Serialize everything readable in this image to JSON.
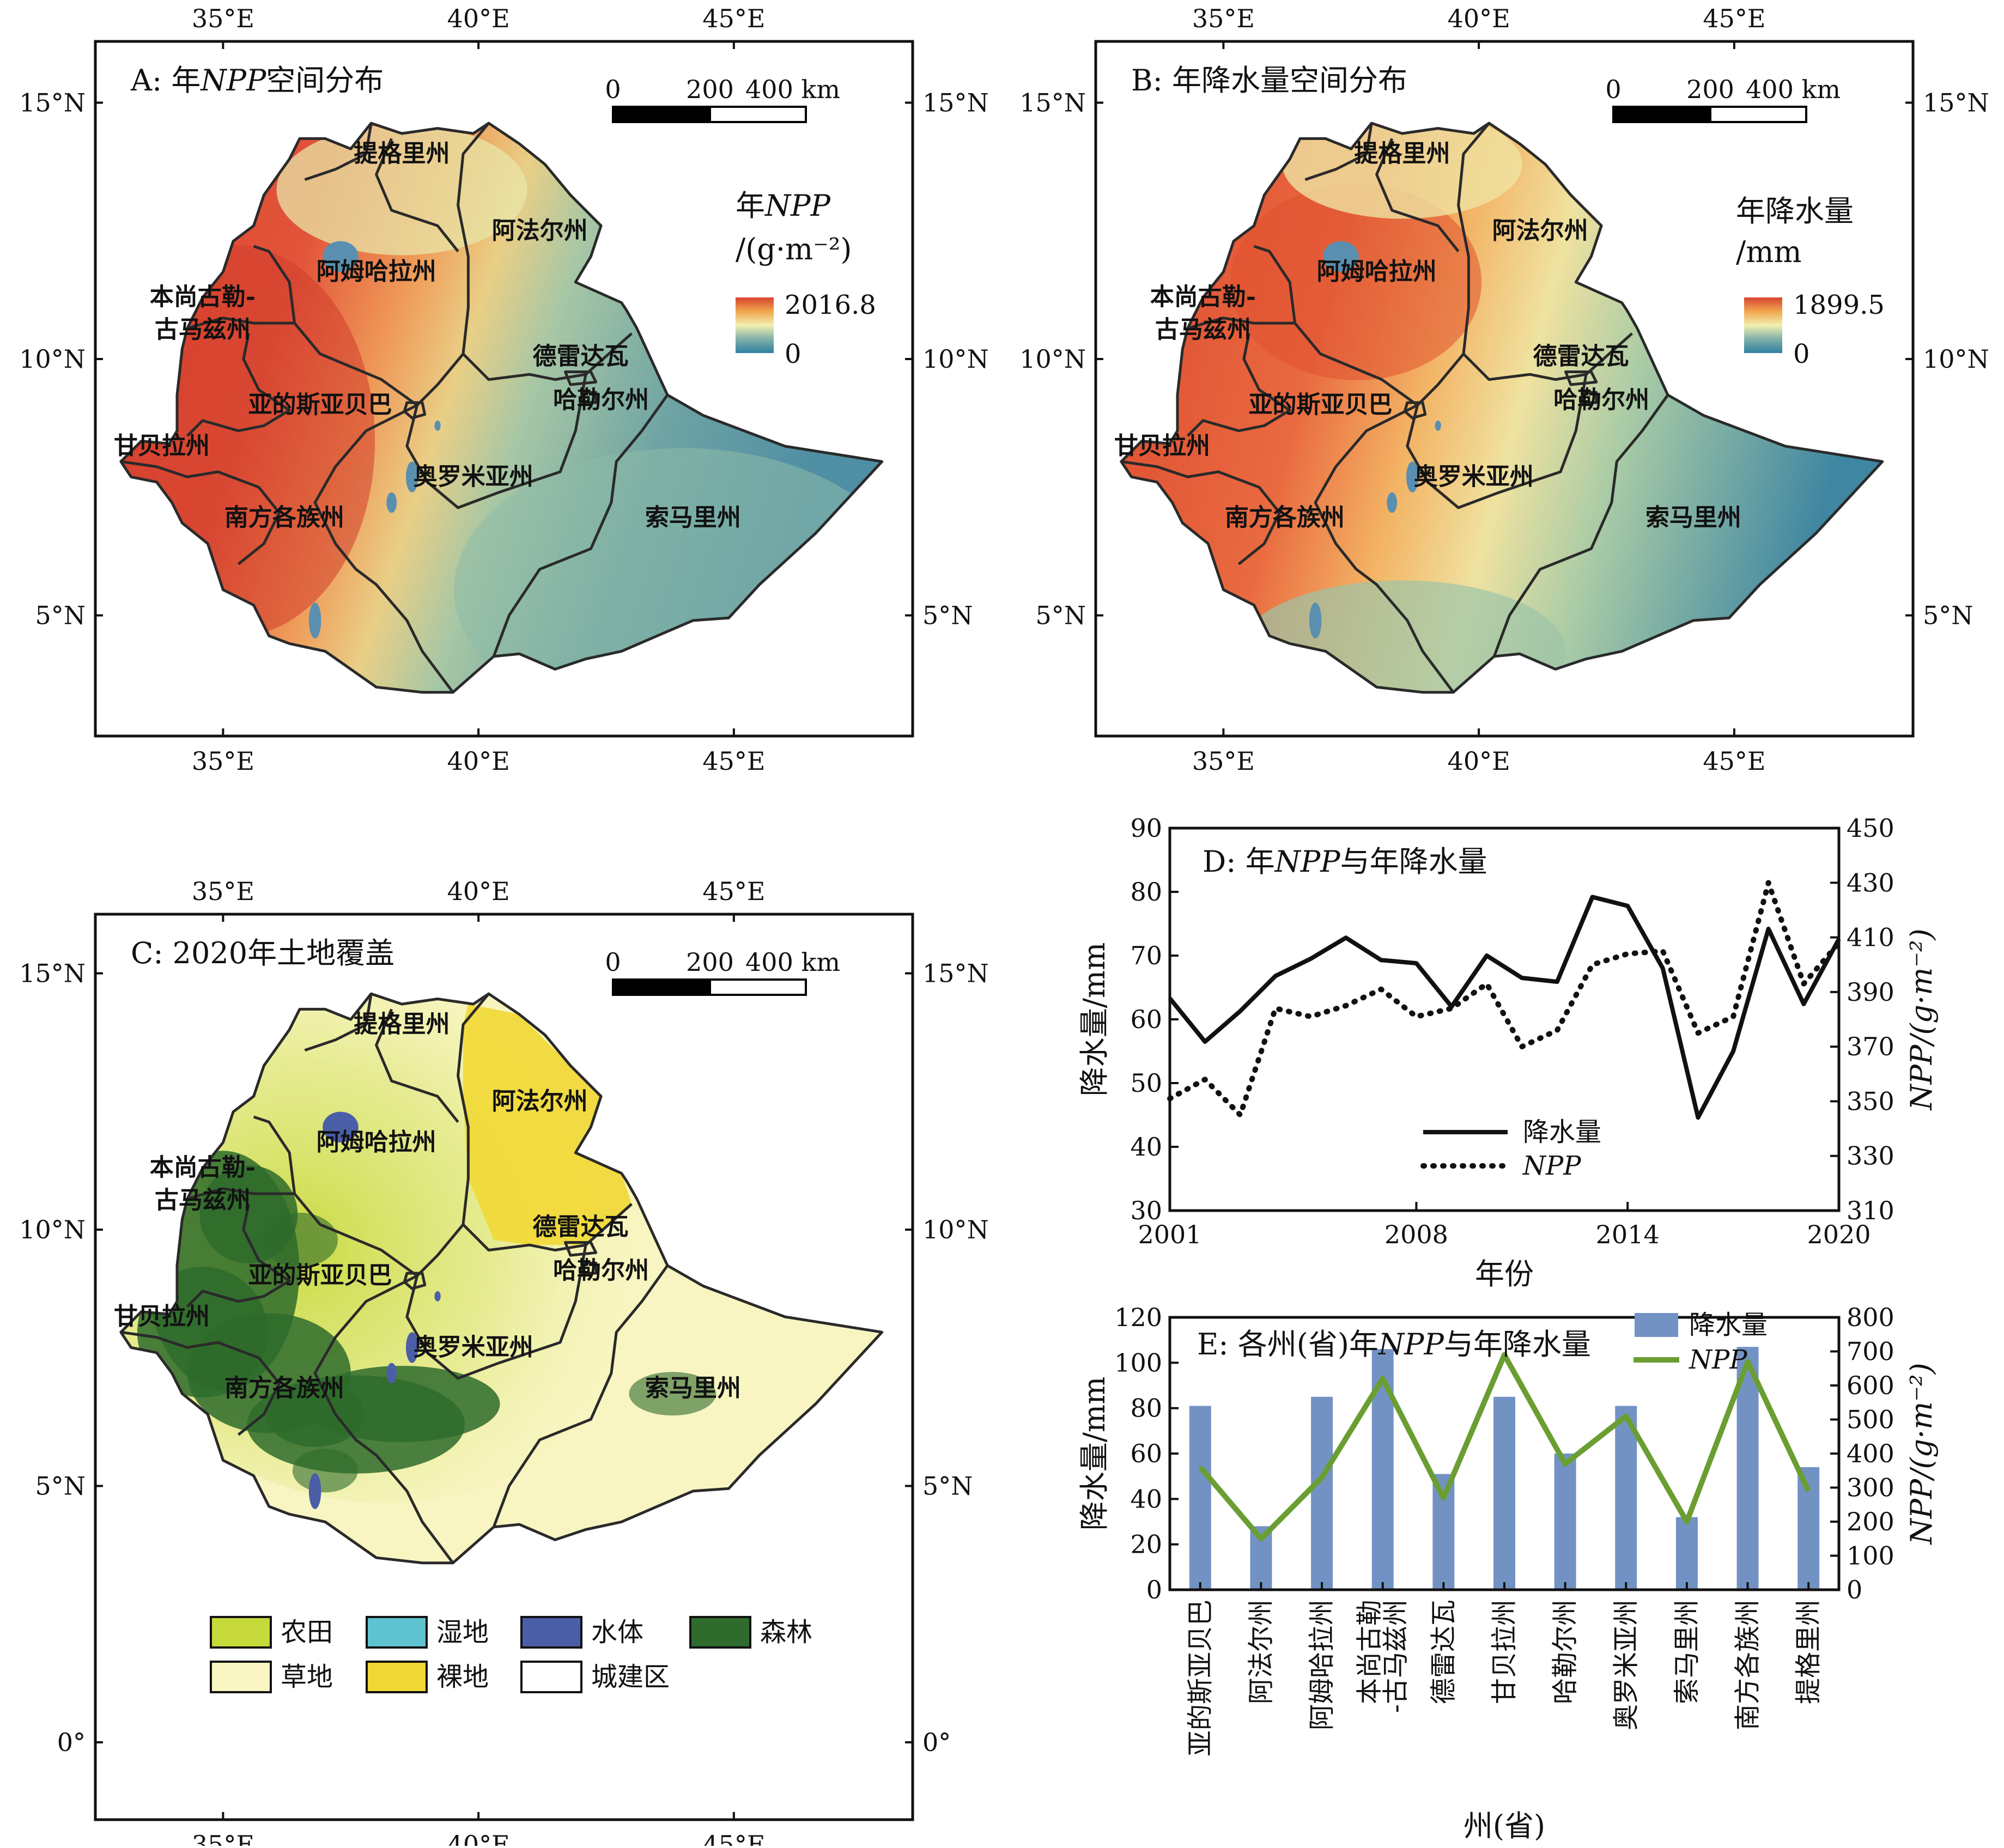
{
  "colors": {
    "npp_ramp": [
      "#2f7fa1",
      "#7fb0a8",
      "#f2efb0",
      "#f0a64e",
      "#d8432e"
    ],
    "precip_bar": "#7392c4",
    "npp_line": "#6b9e32",
    "cropland": "#c6d93a",
    "wetland": "#5fc3cf",
    "water": "#4b5ea8",
    "forest": "#2e6b2c",
    "grassland": "#f8f5c2",
    "bare": "#f1d834",
    "urban": "#ffffff"
  },
  "map_axes": {
    "lon_ticks": [
      "35°E",
      "40°E",
      "45°E"
    ],
    "lat_ticks_ab": [
      "15°N",
      "10°N",
      "5°N"
    ],
    "lat_ticks_c": [
      "15°N",
      "10°N",
      "5°N",
      "0°"
    ]
  },
  "scale_bar": {
    "labels": [
      "0",
      "200",
      "400 km"
    ]
  },
  "provinces": [
    {
      "name": "提格里州",
      "lon": 38.5,
      "lat": 14.0
    },
    {
      "name": "阿法尔州",
      "lon": 41.2,
      "lat": 12.5
    },
    {
      "name": "阿姆哈拉州",
      "lon": 38.0,
      "lat": 11.7
    },
    {
      "name": "德雷达瓦",
      "lon": 42.0,
      "lat": 10.05
    },
    {
      "name": "哈勒尔州",
      "lon": 42.4,
      "lat": 9.2
    },
    {
      "name": "亚的斯亚贝巴",
      "lon": 36.9,
      "lat": 9.1
    },
    {
      "name": "甘贝拉州",
      "lon": 33.8,
      "lat": 8.3
    },
    {
      "name": "奥罗米亚州",
      "lon": 39.9,
      "lat": 7.7
    },
    {
      "name": "索马里州",
      "lon": 44.2,
      "lat": 6.9
    },
    {
      "name": "南方各族州",
      "lon": 36.2,
      "lat": 6.9
    }
  ],
  "benishangul_label": [
    "本尚古勒-",
    "古马兹州"
  ],
  "panel_a": {
    "title_prefix": "A: 年",
    "title_italic": "NPP",
    "title_suffix": "空间分布",
    "legend_title1_prefix": "年",
    "legend_title1_italic": "NPP",
    "legend_title2": "/(g·m⁻²)",
    "legend_max": "2016.8",
    "legend_min": "0"
  },
  "panel_b": {
    "title": "B: 年降水量空间分布",
    "legend_title1": "年降水量",
    "legend_title2": "/mm",
    "legend_max": "1899.5",
    "legend_min": "0"
  },
  "panel_c": {
    "title": "C: 2020年土地覆盖",
    "legend": [
      {
        "name": "农田",
        "color": "#c6d93a"
      },
      {
        "name": "湿地",
        "color": "#5fc3cf"
      },
      {
        "name": "水体",
        "color": "#4b5ea8"
      },
      {
        "name": "森林",
        "color": "#2e6b2c"
      },
      {
        "name": "草地",
        "color": "#f8f5c2"
      },
      {
        "name": "裸地",
        "color": "#f1d834"
      },
      {
        "name": "城建区",
        "color": "#ffffff"
      }
    ]
  },
  "chart_data": [
    {
      "type": "line",
      "title_prefix": "D: 年",
      "title_italic": "NPP",
      "title_suffix": "与年降水量",
      "xlabel": "年份",
      "ylabel": "降水量/mm",
      "y2label": "NPP/(g·m⁻²)",
      "xlim": [
        2001,
        2020
      ],
      "ylim": [
        30,
        90
      ],
      "y2lim": [
        310,
        450
      ],
      "xticks": [
        2001,
        2008,
        2014,
        2020
      ],
      "yticks": [
        30,
        40,
        50,
        60,
        70,
        80,
        90
      ],
      "y2ticks": [
        310,
        330,
        350,
        370,
        390,
        410,
        430,
        450
      ],
      "legend_position": "lower-center",
      "series": [
        {
          "name": "降水量",
          "axis": "left",
          "style": "solid",
          "x": [
            2001,
            2002,
            2003,
            2004,
            2005,
            2006,
            2007,
            2008,
            2009,
            2010,
            2011,
            2012,
            2013,
            2014,
            2015,
            2016,
            2017,
            2018,
            2019,
            2020
          ],
          "values": [
            63.3,
            56.5,
            61.3,
            66.8,
            69.5,
            72.8,
            69.3,
            68.8,
            62.0,
            70.0,
            66.5,
            65.9,
            79.2,
            77.8,
            68.0,
            44.6,
            55.0,
            74.2,
            62.4,
            72.6
          ]
        },
        {
          "name": "NPP",
          "axis": "right",
          "style": "dotted",
          "x": [
            2001,
            2002,
            2003,
            2004,
            2005,
            2006,
            2007,
            2008,
            2009,
            2010,
            2011,
            2012,
            2013,
            2014,
            2015,
            2016,
            2017,
            2018,
            2019,
            2020
          ],
          "values": [
            351,
            358,
            345,
            384,
            381,
            385,
            391,
            381,
            384,
            393,
            370,
            376,
            400,
            404,
            405,
            375,
            381,
            430,
            393,
            408
          ]
        }
      ]
    },
    {
      "type": "bar",
      "title_prefix": "E: 各州(省)年",
      "title_italic": "NPP",
      "title_suffix": "与年降水量",
      "xlabel": "州(省)",
      "ylabel": "降水量/mm",
      "y2label": "NPP/(g·m⁻²)",
      "ylim": [
        0,
        120
      ],
      "y2lim": [
        0,
        800
      ],
      "yticks": [
        0,
        20,
        40,
        60,
        80,
        100,
        120
      ],
      "y2ticks": [
        0,
        100,
        200,
        300,
        400,
        500,
        600,
        700,
        800
      ],
      "legend_position": "top-right",
      "categories": [
        "亚的斯亚贝巴",
        "阿法尔州",
        "阿姆哈拉州",
        "本尚古勒\n-古马兹州",
        "德雷达瓦",
        "甘贝拉州",
        "哈勒尔州",
        "奥罗米亚州",
        "索马里州",
        "南方各族州",
        "提格里州"
      ],
      "series": [
        {
          "name": "降水量",
          "axis": "left",
          "kind": "bar",
          "values": [
            81,
            28,
            85,
            106,
            51,
            85,
            60,
            81,
            32,
            107,
            54
          ]
        },
        {
          "name": "NPP",
          "axis": "right",
          "kind": "line",
          "values": [
            360,
            150,
            330,
            620,
            270,
            690,
            370,
            510,
            200,
            670,
            290
          ]
        }
      ]
    }
  ]
}
